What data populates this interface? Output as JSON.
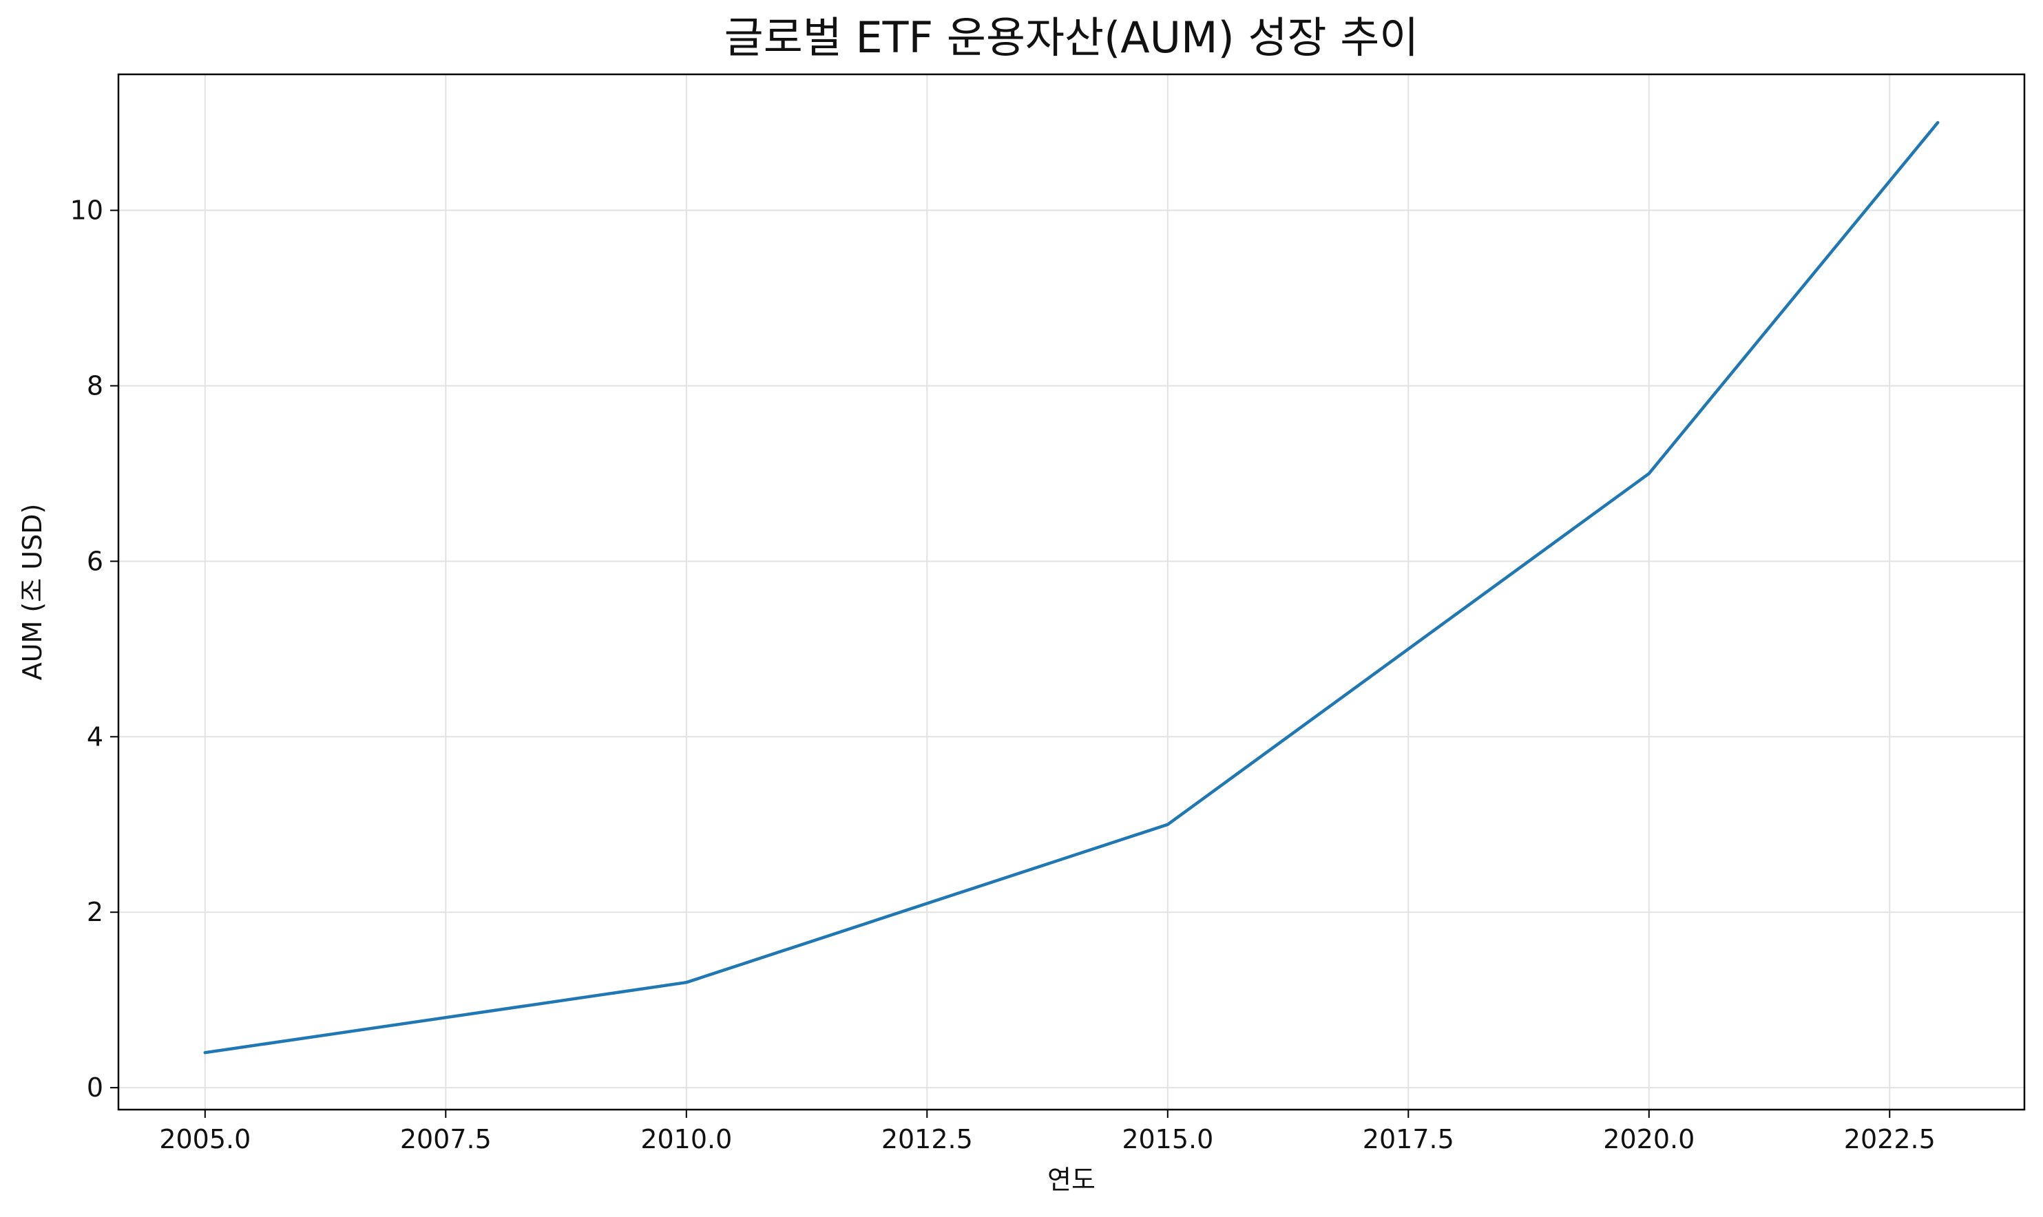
{
  "chart_data": {
    "type": "line",
    "title": "글로벌 ETF 운용자산(AUM) 성장 추이",
    "xlabel": "연도",
    "ylabel": "AUM (조 USD)",
    "xlim": [
      2004.1,
      2023.9
    ],
    "ylim": [
      -0.25,
      11.55
    ],
    "xticks": [
      2005.0,
      2007.5,
      2010.0,
      2012.5,
      2015.0,
      2017.5,
      2020.0,
      2022.5
    ],
    "xtick_labels": [
      "2005.0",
      "2007.5",
      "2010.0",
      "2012.5",
      "2015.0",
      "2017.5",
      "2020.0",
      "2022.5"
    ],
    "yticks": [
      0,
      2,
      4,
      6,
      8,
      10
    ],
    "ytick_labels": [
      "0",
      "2",
      "4",
      "6",
      "8",
      "10"
    ],
    "grid": true,
    "series": [
      {
        "color": "#1f77b4",
        "x": [
          2005,
          2010,
          2015,
          2020,
          2023
        ],
        "y": [
          0.4,
          1.2,
          3.0,
          7.0,
          11.0
        ]
      }
    ]
  }
}
